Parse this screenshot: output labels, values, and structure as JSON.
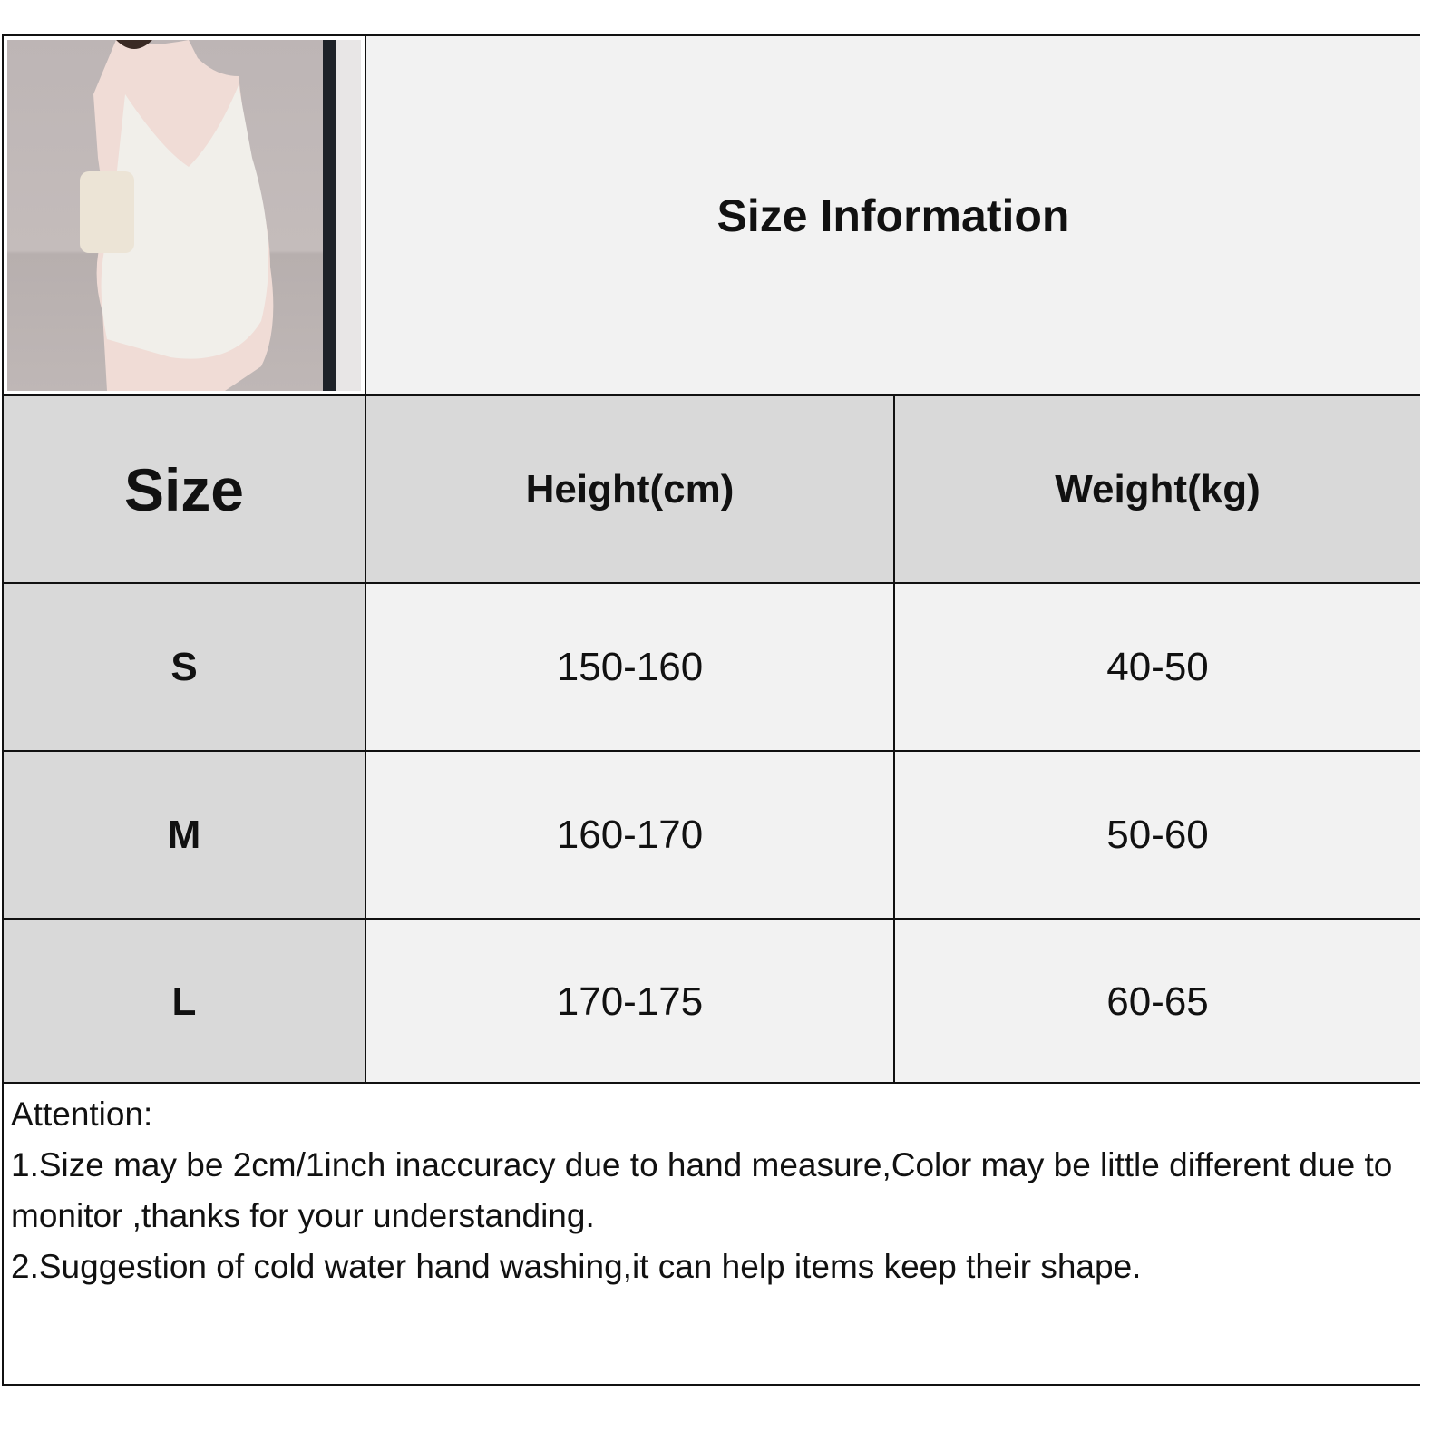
{
  "title": "Size Information",
  "table": {
    "headers": [
      "Size",
      "Height(cm)",
      "Weight(kg)"
    ],
    "rows": [
      {
        "size": "S",
        "height": "150-160",
        "weight": "40-50"
      },
      {
        "size": "M",
        "height": "160-170",
        "weight": "50-60"
      },
      {
        "size": "L",
        "height": "170-175",
        "weight": "60-65"
      }
    ]
  },
  "notes": {
    "heading": "Attention:",
    "lines": [
      "1.Size may be 2cm/1inch inaccuracy due to hand measure,Color may be little different due to monitor ,thanks for your understanding.",
      "2.Suggestion of cold water hand washing,it can help items keep their shape."
    ]
  },
  "colors": {
    "header_bg": "#d9d9d9",
    "cell_bg": "#f2f2f2",
    "border": "#111111"
  }
}
